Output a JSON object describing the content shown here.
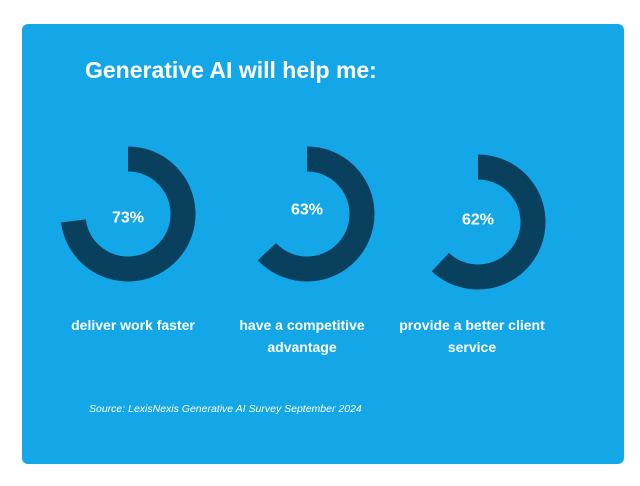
{
  "colors": {
    "card_background": "#13a7e8",
    "ring_fill": "#08405e",
    "text": "#ffffff"
  },
  "title": "Generative AI will help me:",
  "chart_data": {
    "type": "donut",
    "unit": "%",
    "title": "Generative AI will help me:",
    "categories": [
      "deliver work faster",
      "have a competitive advantage",
      "provide a better client service"
    ],
    "values": [
      73,
      63,
      62
    ],
    "value_labels": [
      "73%",
      "63%",
      "62%"
    ],
    "source": "Source: LexisNexis Generative AI Survey September 2024"
  }
}
